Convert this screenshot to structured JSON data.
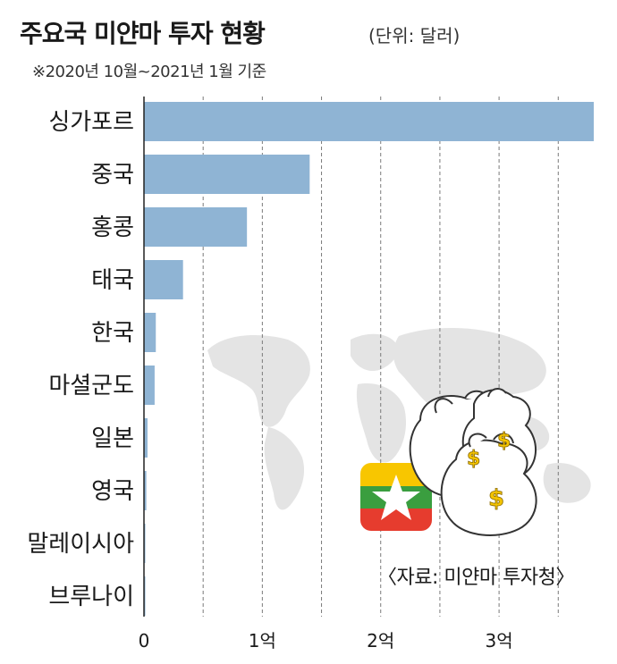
{
  "header": {
    "title": "주요국 미얀마 투자 현황",
    "unit": "(단위: 달러)",
    "period": "※2020년 10월~2021년 1월 기준"
  },
  "source": "〈자료: 미얀마 투자청〉",
  "colors": {
    "bar": "#8fb4d4",
    "grid": "#7a7a7a",
    "map": "#e4e4e4",
    "flag_yellow": "#f8c600",
    "flag_green": "#3a9e3f",
    "flag_red": "#e63c2e",
    "coin": "#f4c400"
  },
  "icons": [
    "world-map",
    "myanmar-flag",
    "money-bag-icon"
  ],
  "chart_data": {
    "type": "bar",
    "orientation": "horizontal",
    "categories": [
      "싱가포르",
      "중국",
      "홍콩",
      "태국",
      "한국",
      "마셜군도",
      "일본",
      "영국",
      "말레이시아",
      "브루나이"
    ],
    "values": [
      380000000,
      140000000,
      87000000,
      33000000,
      10000000,
      9000000,
      3000000,
      2000000,
      1000000,
      500000
    ],
    "xlim": [
      0,
      380000000
    ],
    "x_ticks": [
      0,
      100000000,
      200000000,
      300000000
    ],
    "x_tick_labels": [
      "0",
      "1억",
      "2억",
      "3억"
    ],
    "grid": true,
    "title": "주요국 미얀마 투자 현황"
  }
}
